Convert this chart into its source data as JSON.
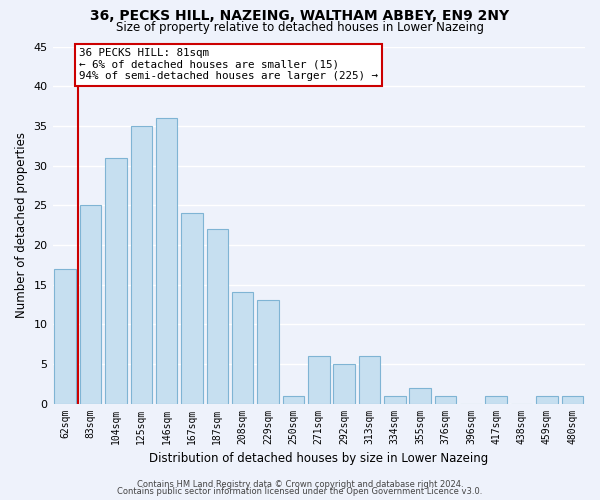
{
  "title": "36, PECKS HILL, NAZEING, WALTHAM ABBEY, EN9 2NY",
  "subtitle": "Size of property relative to detached houses in Lower Nazeing",
  "xlabel": "Distribution of detached houses by size in Lower Nazeing",
  "ylabel": "Number of detached properties",
  "footer_line1": "Contains HM Land Registry data © Crown copyright and database right 2024.",
  "footer_line2": "Contains public sector information licensed under the Open Government Licence v3.0.",
  "bin_labels": [
    "62sqm",
    "83sqm",
    "104sqm",
    "125sqm",
    "146sqm",
    "167sqm",
    "187sqm",
    "208sqm",
    "229sqm",
    "250sqm",
    "271sqm",
    "292sqm",
    "313sqm",
    "334sqm",
    "355sqm",
    "376sqm",
    "396sqm",
    "417sqm",
    "438sqm",
    "459sqm",
    "480sqm"
  ],
  "bar_heights": [
    17,
    25,
    31,
    35,
    36,
    24,
    22,
    14,
    13,
    1,
    6,
    5,
    6,
    1,
    2,
    1,
    0,
    1,
    0,
    1,
    1
  ],
  "bar_color": "#c6dff0",
  "bar_edge_color": "#7fb4d4",
  "annotation_title": "36 PECKS HILL: 81sqm",
  "annotation_line1": "← 6% of detached houses are smaller (15)",
  "annotation_line2": "94% of semi-detached houses are larger (225) →",
  "annotation_box_facecolor": "#ffffff",
  "annotation_box_edgecolor": "#cc0000",
  "property_line_color": "#cc0000",
  "ylim": [
    0,
    45
  ],
  "bg_color": "#eef2fb",
  "grid_color": "#ffffff",
  "yticks": [
    0,
    5,
    10,
    15,
    20,
    25,
    30,
    35,
    40,
    45
  ]
}
